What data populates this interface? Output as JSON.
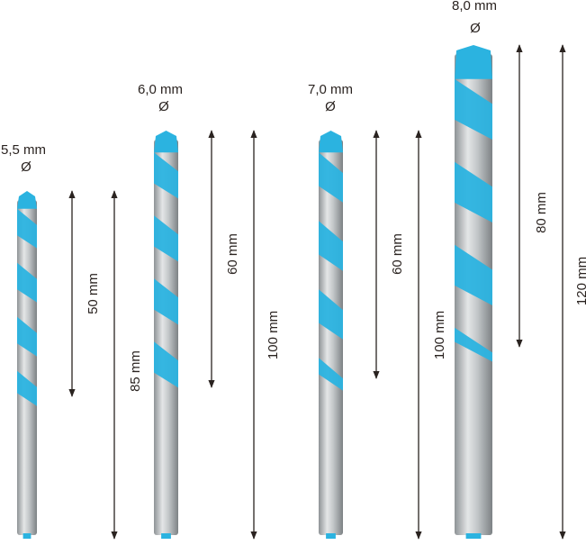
{
  "colors": {
    "flute": "#2bb3e0",
    "shank": "#b9bdc0",
    "arrow": "#2a2320"
  },
  "drills": [
    {
      "diameter": "5,5 mm",
      "symbol": "Ø",
      "working_length": "50 mm",
      "total_length": "85 mm"
    },
    {
      "diameter": "6,0 mm",
      "symbol": "Ø",
      "working_length": "60 mm",
      "total_length": "100 mm"
    },
    {
      "diameter": "7,0 mm",
      "symbol": "Ø",
      "working_length": "60 mm",
      "total_length": "100 mm"
    },
    {
      "diameter": "8,0 mm",
      "symbol": "Ø",
      "working_length": "80 mm",
      "total_length": "120 mm"
    }
  ]
}
